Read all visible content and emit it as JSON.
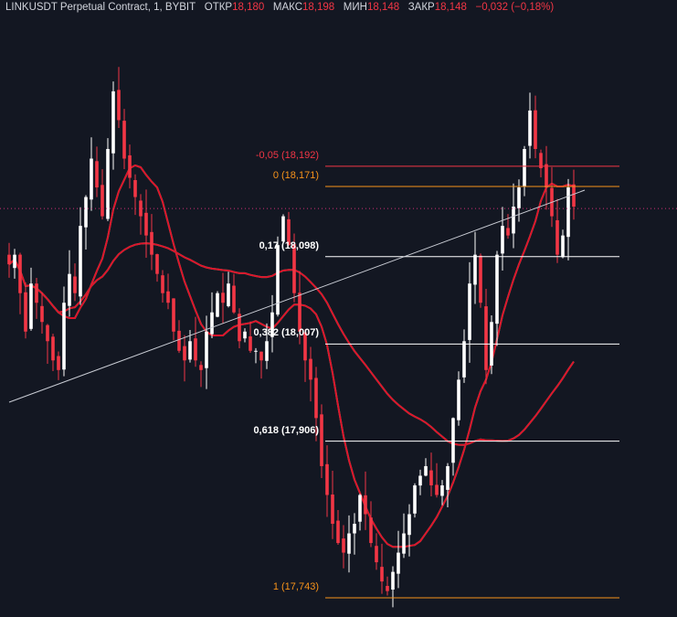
{
  "legend": {
    "symbol": "LINKUSDT Perpetual Contract, 1, BYBIT",
    "open_label": "ОТКР",
    "open_value": "18,180",
    "high_label": "МАКС",
    "high_value": "18,198",
    "low_label": "МИН",
    "low_value": "18,148",
    "close_label": "ЗАКР",
    "close_value": "18,148",
    "change": "−0,032 (−0,18%)"
  },
  "colors": {
    "background": "#131722",
    "candle_up": "#ffffff",
    "candle_down": "#f23645",
    "ma_red": "#e0122a",
    "ma_green": "#20e394",
    "trendline": "#c9ccd4",
    "fib_orange": "#f7931a",
    "fib_white": "#ffffff",
    "fib_red": "#f23645",
    "price_line": "#d0307a"
  },
  "chart_data": {
    "type": "line",
    "title": "LINKUSDT Perpetual Contract, 1, BYBIT",
    "y_unit": "USDT",
    "ylim": [
      17.74,
      18.33
    ],
    "grid": false,
    "price_close_last": 18.148,
    "fibonacci_levels": [
      {
        "label": "-0,05 (18,192)",
        "level": -0.05,
        "price": 18.192,
        "color": "red"
      },
      {
        "label": "0 (18,171)",
        "level": 0,
        "price": 18.171,
        "color": "orange"
      },
      {
        "label": "0,17 (18,098)",
        "level": 0.17,
        "price": 18.098,
        "color": "white"
      },
      {
        "label": "0,382 (18,007)",
        "level": 0.382,
        "price": 18.007,
        "color": "white"
      },
      {
        "label": "0,618 (17,906)",
        "level": 0.618,
        "price": 17.906,
        "color": "white"
      },
      {
        "label": "1 (17,743)",
        "level": 1,
        "price": 17.743,
        "color": "orange"
      }
    ],
    "close_series": [
      18.09,
      18.1,
      18.06,
      18.02,
      18.07,
      18.05,
      18.03,
      18.01,
      17.99,
      17.98,
      18.05,
      18.08,
      18.06,
      18.13,
      18.16,
      18.2,
      18.17,
      18.14,
      18.21,
      18.27,
      18.24,
      18.2,
      18.18,
      18.16,
      18.14,
      18.12,
      18.1,
      18.08,
      18.06,
      18.05,
      18.02,
      18.0,
      17.99,
      18.01,
      17.99,
      17.98,
      18.02,
      18.04,
      18.06,
      18.05,
      18.07,
      18.04,
      18.01,
      18.02,
      18.0,
      18.0,
      17.99,
      18.01,
      18.04,
      18.11,
      18.14,
      18.11,
      18.06,
      18.02,
      17.99,
      17.97,
      17.93,
      17.88,
      17.85,
      17.82,
      17.8,
      17.79,
      17.81,
      17.82,
      17.85,
      17.83,
      17.8,
      17.78,
      17.76,
      17.75,
      17.77,
      17.79,
      17.81,
      17.83,
      17.86,
      17.87,
      17.88,
      17.86,
      17.85,
      17.86,
      17.88,
      17.93,
      17.97,
      18.01,
      18.07,
      18.1,
      18.05,
      17.98,
      18.03,
      18.1,
      18.13,
      18.12,
      18.15,
      18.17,
      18.21,
      18.25,
      18.21,
      18.19,
      18.17,
      18.14,
      18.1,
      18.12,
      18.17,
      18.15
    ],
    "moving_averages": [
      {
        "color": "green",
        "period": 10
      },
      {
        "color": "red",
        "period": 10
      },
      {
        "color": "green",
        "period": 40
      },
      {
        "color": "red",
        "period": 40
      }
    ]
  }
}
